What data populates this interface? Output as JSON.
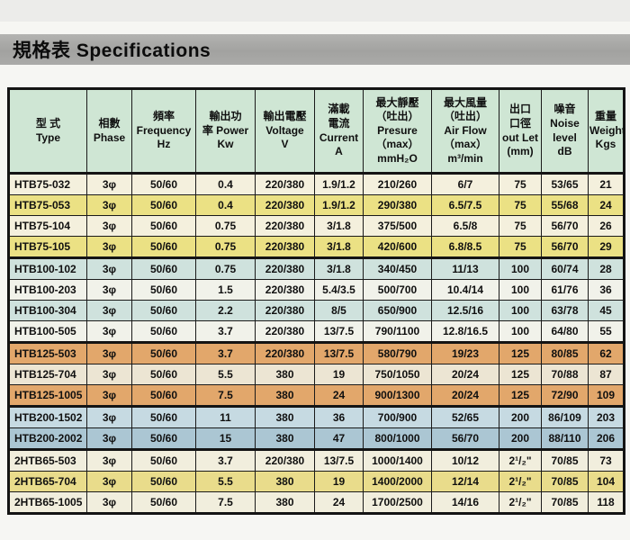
{
  "page": {
    "title": "規格表 Specifications"
  },
  "colors": {
    "title_bar": "#a8a8a6",
    "header_bg": "#cfe6d4",
    "row_cream": "#f4f0dd",
    "row_yellow": "#ebe184",
    "row_blue": "#cfe2dd",
    "row_white": "#f1f2ea",
    "row_orange": "#e2a76b",
    "row_tan": "#ece5d3",
    "row_steel_light": "#c6dae2",
    "row_steel_dark": "#abc6d3",
    "row_cream2": "#f1eedd",
    "row_yellow2": "#e9dc8b"
  },
  "table": {
    "headers": [
      "型 式\nType",
      "相數\nPhase",
      "頻率\nFrequency\nHz",
      "輸出功\n率 Power\nKw",
      "輸出電壓\nVoltage\nV",
      "滿載\n電流\nCurrent\nA",
      "最大靜壓\n（吐出）\nPresure\n（max）\nmmH₂O",
      "最大風量\n（吐出）\nAir Flow\n（max）\nm³/min",
      "出口\n口徑\nout Let\n(mm)",
      "噪音\nNoise\nlevel\ndB",
      "重量\nWeight\nKgs"
    ],
    "rows": [
      {
        "color": "row_cream",
        "group_end": false,
        "cells": [
          "HTB75-032",
          "3φ",
          "50/60",
          "0.4",
          "220/380",
          "1.9/1.2",
          "210/260",
          "6/7",
          "75",
          "53/65",
          "21"
        ]
      },
      {
        "color": "row_yellow",
        "group_end": false,
        "cells": [
          "HTB75-053",
          "3φ",
          "50/60",
          "0.4",
          "220/380",
          "1.9/1.2",
          "290/380",
          "6.5/7.5",
          "75",
          "55/68",
          "24"
        ]
      },
      {
        "color": "row_cream",
        "group_end": false,
        "cells": [
          "HTB75-104",
          "3φ",
          "50/60",
          "0.75",
          "220/380",
          "3/1.8",
          "375/500",
          "6.5/8",
          "75",
          "56/70",
          "26"
        ]
      },
      {
        "color": "row_yellow",
        "group_end": true,
        "cells": [
          "HTB75-105",
          "3φ",
          "50/60",
          "0.75",
          "220/380",
          "3/1.8",
          "420/600",
          "6.8/8.5",
          "75",
          "56/70",
          "29"
        ]
      },
      {
        "color": "row_blue",
        "group_end": false,
        "cells": [
          "HTB100-102",
          "3φ",
          "50/60",
          "0.75",
          "220/380",
          "3/1.8",
          "340/450",
          "11/13",
          "100",
          "60/74",
          "28"
        ]
      },
      {
        "color": "row_white",
        "group_end": false,
        "cells": [
          "HTB100-203",
          "3φ",
          "50/60",
          "1.5",
          "220/380",
          "5.4/3.5",
          "500/700",
          "10.4/14",
          "100",
          "61/76",
          "36"
        ]
      },
      {
        "color": "row_blue",
        "group_end": false,
        "cells": [
          "HTB100-304",
          "3φ",
          "50/60",
          "2.2",
          "220/380",
          "8/5",
          "650/900",
          "12.5/16",
          "100",
          "63/78",
          "45"
        ]
      },
      {
        "color": "row_white",
        "group_end": true,
        "cells": [
          "HTB100-505",
          "3φ",
          "50/60",
          "3.7",
          "220/380",
          "13/7.5",
          "790/1100",
          "12.8/16.5",
          "100",
          "64/80",
          "55"
        ]
      },
      {
        "color": "row_orange",
        "group_end": false,
        "cells": [
          "HTB125-503",
          "3φ",
          "50/60",
          "3.7",
          "220/380",
          "13/7.5",
          "580/790",
          "19/23",
          "125",
          "80/85",
          "62"
        ]
      },
      {
        "color": "row_tan",
        "group_end": false,
        "cells": [
          "HTB125-704",
          "3φ",
          "50/60",
          "5.5",
          "380",
          "19",
          "750/1050",
          "20/24",
          "125",
          "70/88",
          "87"
        ]
      },
      {
        "color": "row_orange",
        "group_end": true,
        "cells": [
          "HTB125-1005",
          "3φ",
          "50/60",
          "7.5",
          "380",
          "24",
          "900/1300",
          "20/24",
          "125",
          "72/90",
          "109"
        ]
      },
      {
        "color": "row_steel_light",
        "group_end": false,
        "cells": [
          "HTB200-1502",
          "3φ",
          "50/60",
          "11",
          "380",
          "36",
          "700/900",
          "52/65",
          "200",
          "86/109",
          "203"
        ]
      },
      {
        "color": "row_steel_dark",
        "group_end": true,
        "cells": [
          "HTB200-2002",
          "3φ",
          "50/60",
          "15",
          "380",
          "47",
          "800/1000",
          "56/70",
          "200",
          "88/110",
          "206"
        ]
      },
      {
        "color": "row_cream2",
        "group_end": false,
        "cells": [
          "2HTB65-503",
          "3φ",
          "50/60",
          "3.7",
          "220/380",
          "13/7.5",
          "1000/1400",
          "10/12",
          "2¹/₂\"",
          "70/85",
          "73"
        ]
      },
      {
        "color": "row_yellow2",
        "group_end": false,
        "cells": [
          "2HTB65-704",
          "3φ",
          "50/60",
          "5.5",
          "380",
          "19",
          "1400/2000",
          "12/14",
          "2¹/₂\"",
          "70/85",
          "104"
        ]
      },
      {
        "color": "row_cream2",
        "group_end": true,
        "cells": [
          "2HTB65-1005",
          "3φ",
          "50/60",
          "7.5",
          "380",
          "24",
          "1700/2500",
          "14/16",
          "2¹/₂\"",
          "70/85",
          "118"
        ]
      }
    ]
  }
}
